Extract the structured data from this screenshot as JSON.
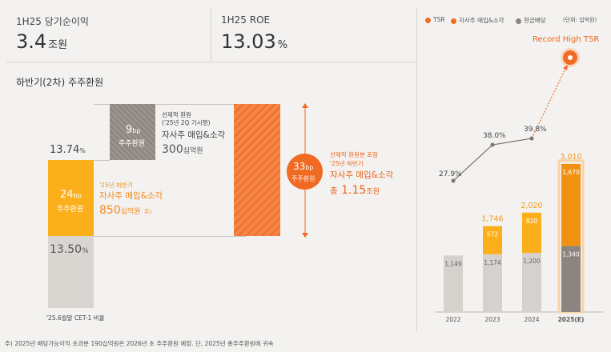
{
  "kpis": [
    {
      "label": "1H25 당기순이익",
      "value": "3.4",
      "unit": "조원"
    },
    {
      "label": "1H25 ROE",
      "value": "13.03",
      "unit": "%"
    }
  ],
  "section_title": "하반기(2차) 주주환원",
  "waterfall": {
    "top_ratio": "13.74",
    "top_ratio_unit": "%",
    "base_ratio": "13.50",
    "base_ratio_unit": "%",
    "base_caption": "'25.6월말 CET-1 비율",
    "block_24": {
      "bp": "24",
      "bp_unit": "bp",
      "label": "주주환원"
    },
    "block_9": {
      "bp": "9",
      "bp_unit": "bp",
      "label": "주주환원"
    },
    "block_33": {
      "bp": "33",
      "bp_unit": "bp",
      "label": "주주환원"
    },
    "note_24": {
      "line1": "'25년 하반기",
      "line2": "자사주 매입&소각",
      "amount": "850",
      "amount_unit": "십억원",
      "sup": "주)"
    },
    "note_9": {
      "line1": "선제적 환원",
      "line2": "('25년 2Q 기시행)",
      "line3": "자사주 매입&소각",
      "amount": "300",
      "amount_unit": "십억원"
    },
    "note_33": {
      "line1": "선제적 환원분 포함",
      "line2": "'25년 하반기",
      "line3": "자사주 매입&소각",
      "total_prefix": "총",
      "amount": "1.15",
      "amount_unit": "조원"
    }
  },
  "legend": {
    "tsr": "TSR",
    "buyback": "자사주 매입&소각",
    "dividend": "현금배당",
    "unit": "(단위: 십억원)"
  },
  "annotation": "Record High TSR",
  "footnote": "주) 2025년 배당가능이익 초과분 190십억원은 2026년 초 주주환원 예정. 단, 2025년 총주주환원에 귀속",
  "colors": {
    "dividend": "#d5d1cd",
    "dividend_dark": "#8c857f",
    "buyback": "#fbaf1b",
    "buyback_dark": "#f19112",
    "tsr_line": "#7a7570",
    "accent": "#f06a22"
  },
  "chart_data": {
    "type": "bar",
    "categories": [
      "2022",
      "2023",
      "2024",
      "2025(E)"
    ],
    "series": [
      {
        "name": "현금배당",
        "values": [
          1149,
          1174,
          1200,
          1340
        ]
      },
      {
        "name": "자사주 매입&소각",
        "values": [
          null,
          572,
          820,
          1670
        ]
      },
      {
        "name": "TSR",
        "values": [
          27.9,
          38.0,
          39.8,
          null
        ],
        "unit": "%"
      }
    ],
    "totals": [
      null,
      1746,
      2020,
      3010
    ],
    "bar_labels_dividend": [
      "1,149",
      "1,174",
      "1,200",
      "1,340"
    ],
    "bar_labels_buyback": [
      "",
      "572",
      "820",
      "1,670"
    ],
    "total_labels": [
      "",
      "1,746",
      "2,020",
      "3,010"
    ],
    "tsr_labels": [
      "27.9%",
      "38.0%",
      "39.8%",
      ""
    ]
  }
}
